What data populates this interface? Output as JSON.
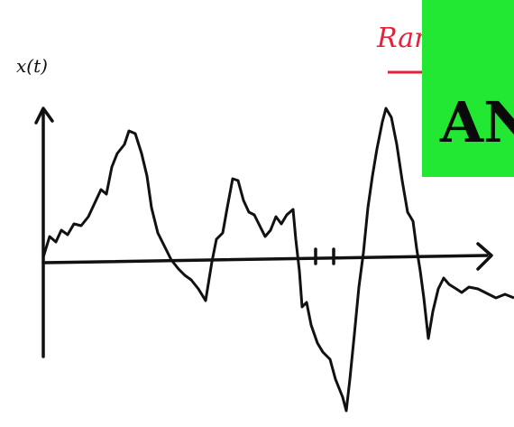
{
  "axis_label": "x(t)",
  "annotation": "Ran",
  "banner": "AN"
}
